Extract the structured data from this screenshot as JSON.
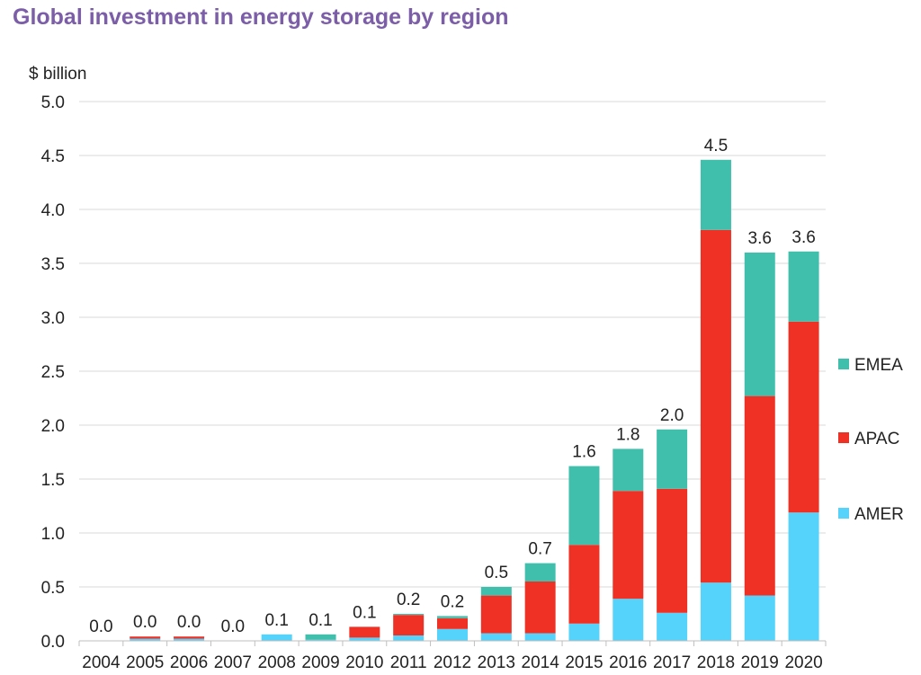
{
  "chart_data": {
    "type": "bar",
    "stacked": true,
    "title": "Global investment in energy storage by region",
    "ylabel": "$ billion",
    "xlabel": "",
    "ylim": [
      0,
      5.0
    ],
    "yticks": [
      "0.0",
      "0.5",
      "1.0",
      "1.5",
      "2.0",
      "2.5",
      "3.0",
      "3.5",
      "4.0",
      "4.5",
      "5.0"
    ],
    "grid": true,
    "legend_position": "right",
    "categories": [
      "2004",
      "2005",
      "2006",
      "2007",
      "2008",
      "2009",
      "2010",
      "2011",
      "2012",
      "2013",
      "2014",
      "2015",
      "2016",
      "2017",
      "2018",
      "2019",
      "2020"
    ],
    "series": [
      {
        "name": "AMER",
        "color": "#55d3fb",
        "values": [
          0,
          0.02,
          0.02,
          0,
          0.06,
          0.01,
          0.03,
          0.05,
          0.11,
          0.07,
          0.07,
          0.16,
          0.39,
          0.26,
          0.54,
          0.42,
          1.19
        ]
      },
      {
        "name": "APAC",
        "color": "#ee3124",
        "values": [
          0,
          0.02,
          0.02,
          0,
          0,
          0,
          0.1,
          0.19,
          0.1,
          0.35,
          0.48,
          0.73,
          1.0,
          1.15,
          3.27,
          1.85,
          1.77
        ]
      },
      {
        "name": "EMEA",
        "color": "#41bfad",
        "values": [
          0,
          0,
          0,
          0,
          0,
          0.05,
          0,
          0.01,
          0.02,
          0.08,
          0.17,
          0.73,
          0.39,
          0.55,
          0.65,
          1.33,
          0.65
        ]
      }
    ],
    "total_labels": [
      "0.0",
      "0.0",
      "0.0",
      "0.0",
      "0.1",
      "0.1",
      "0.1",
      "0.2",
      "0.2",
      "0.5",
      "0.7",
      "1.6",
      "1.8",
      "2.0",
      "4.5",
      "3.6",
      "3.6"
    ],
    "legend_order": [
      "EMEA",
      "APAC",
      "AMER"
    ]
  }
}
